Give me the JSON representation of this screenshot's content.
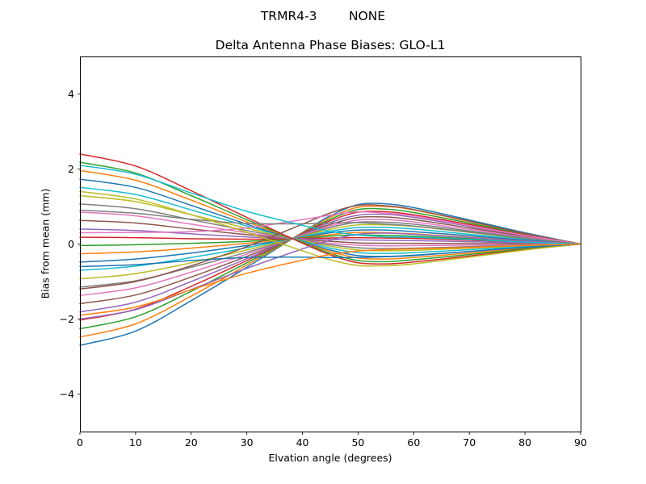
{
  "figure": {
    "background": "#ffffff"
  },
  "chart_data": {
    "type": "line",
    "suptitle": "TRMR4-3        NONE",
    "title": "Delta Antenna Phase Biases: GLO-L1",
    "xlabel": "Elvation angle (degrees)",
    "ylabel": "Bias from mean (mm)",
    "xlim": [
      0,
      90
    ],
    "ylim": [
      -5,
      5
    ],
    "xticks": [
      0,
      10,
      20,
      30,
      40,
      50,
      60,
      70,
      80,
      90
    ],
    "yticks": [
      -4,
      -2,
      0,
      2,
      4
    ],
    "grid": false,
    "legend": "none",
    "palette": [
      "#1f77b4",
      "#ff7f0e",
      "#2ca02c",
      "#d62728",
      "#9467bd",
      "#8c564b",
      "#e377c2",
      "#7f7f7f",
      "#bcbd22",
      "#17becf"
    ],
    "x": [
      0,
      10,
      20,
      30,
      40,
      45,
      50,
      55,
      60,
      70,
      80,
      90
    ],
    "series": [
      {
        "values": [
          -2.7,
          -2.32,
          -1.51,
          -0.62,
          0.31,
          0.75,
          1.05,
          1.07,
          0.97,
          0.64,
          0.3,
          0.0
        ]
      },
      {
        "values": [
          -2.48,
          -2.13,
          -1.39,
          -0.56,
          0.3,
          0.71,
          0.98,
          1.0,
          0.91,
          0.6,
          0.28,
          0.0
        ]
      },
      {
        "values": [
          -2.26,
          -1.94,
          -1.26,
          -0.5,
          0.29,
          0.66,
          0.92,
          0.93,
          0.84,
          0.56,
          0.26,
          0.0
        ]
      },
      {
        "values": [
          -2.03,
          -1.74,
          -1.13,
          -0.44,
          0.28,
          0.62,
          0.85,
          0.86,
          0.78,
          0.52,
          0.24,
          0.0
        ]
      },
      {
        "values": [
          -1.81,
          -1.55,
          -1.0,
          -0.39,
          0.26,
          0.57,
          0.77,
          0.79,
          0.71,
          0.47,
          0.22,
          0.0
        ]
      },
      {
        "values": [
          -1.59,
          -1.36,
          -0.88,
          -0.33,
          0.25,
          0.52,
          0.71,
          0.72,
          0.65,
          0.43,
          0.2,
          0.0
        ]
      },
      {
        "values": [
          -1.37,
          -1.17,
          -0.75,
          -0.27,
          0.24,
          0.48,
          0.64,
          0.65,
          0.59,
          0.39,
          0.18,
          0.0
        ]
      },
      {
        "values": [
          -1.15,
          -0.98,
          -0.62,
          -0.22,
          0.22,
          0.44,
          0.58,
          0.58,
          0.53,
          0.35,
          0.16,
          0.0
        ]
      },
      {
        "values": [
          -0.93,
          -0.79,
          -0.5,
          -0.16,
          0.21,
          0.39,
          0.51,
          0.51,
          0.47,
          0.31,
          0.14,
          0.0
        ]
      },
      {
        "values": [
          -0.7,
          -0.59,
          -0.36,
          -0.1,
          0.2,
          0.34,
          0.44,
          0.44,
          0.4,
          0.26,
          0.12,
          0.0
        ]
      },
      {
        "values": [
          -0.48,
          -0.4,
          -0.24,
          -0.04,
          0.18,
          0.3,
          0.37,
          0.37,
          0.33,
          0.22,
          0.1,
          0.0
        ]
      },
      {
        "values": [
          -0.26,
          -0.21,
          -0.11,
          0.02,
          0.17,
          0.25,
          0.31,
          0.3,
          0.27,
          0.18,
          0.08,
          0.0
        ]
      },
      {
        "values": [
          -0.04,
          -0.02,
          0.02,
          0.07,
          0.16,
          0.21,
          0.24,
          0.23,
          0.21,
          0.14,
          0.06,
          0.0
        ]
      },
      {
        "values": [
          0.18,
          0.17,
          0.14,
          0.13,
          0.15,
          0.16,
          0.17,
          0.16,
          0.15,
          0.1,
          0.05,
          0.0
        ]
      },
      {
        "values": [
          0.4,
          0.36,
          0.27,
          0.19,
          0.14,
          0.12,
          0.11,
          0.1,
          0.09,
          0.06,
          0.03,
          0.0
        ]
      },
      {
        "values": [
          0.63,
          0.56,
          0.4,
          0.25,
          0.12,
          0.07,
          0.03,
          0.02,
          0.02,
          0.01,
          0.01,
          0.0
        ]
      },
      {
        "values": [
          0.85,
          0.75,
          0.53,
          0.3,
          0.11,
          0.02,
          -0.03,
          -0.05,
          -0.04,
          -0.03,
          -0.01,
          0.0
        ]
      },
      {
        "values": [
          1.07,
          0.94,
          0.65,
          0.36,
          0.1,
          -0.02,
          -0.1,
          -0.12,
          -0.11,
          -0.07,
          -0.03,
          0.0
        ]
      },
      {
        "values": [
          1.29,
          1.13,
          0.78,
          0.42,
          0.09,
          -0.06,
          -0.16,
          -0.18,
          -0.17,
          -0.11,
          -0.05,
          0.0
        ]
      },
      {
        "values": [
          1.51,
          1.32,
          0.91,
          0.48,
          0.08,
          -0.11,
          -0.23,
          -0.25,
          -0.23,
          -0.15,
          -0.07,
          0.0
        ]
      },
      {
        "values": [
          1.73,
          1.51,
          1.03,
          0.53,
          0.06,
          -0.16,
          -0.31,
          -0.33,
          -0.3,
          -0.2,
          -0.09,
          0.0
        ]
      },
      {
        "values": [
          1.96,
          1.7,
          1.17,
          0.59,
          0.05,
          -0.2,
          -0.37,
          -0.4,
          -0.36,
          -0.24,
          -0.11,
          0.0
        ]
      },
      {
        "values": [
          2.18,
          1.89,
          1.29,
          0.65,
          0.04,
          -0.25,
          -0.44,
          -0.47,
          -0.42,
          -0.28,
          -0.13,
          0.0
        ]
      },
      {
        "values": [
          2.4,
          2.08,
          1.42,
          0.71,
          0.02,
          -0.29,
          -0.5,
          -0.53,
          -0.48,
          -0.32,
          -0.15,
          0.0
        ]
      },
      {
        "values": [
          -2.0,
          -1.75,
          -1.21,
          -0.65,
          -0.13,
          0.1,
          0.26,
          0.29,
          0.26,
          0.17,
          0.08,
          0.0
        ]
      },
      {
        "values": [
          -1.2,
          -1.0,
          -0.58,
          -0.07,
          0.53,
          0.83,
          1.03,
          1.02,
          0.92,
          0.61,
          0.28,
          0.0
        ]
      },
      {
        "values": [
          0.3,
          0.31,
          0.33,
          0.43,
          0.65,
          0.77,
          0.86,
          0.82,
          0.75,
          0.49,
          0.23,
          0.0
        ]
      },
      {
        "values": [
          0.9,
          0.82,
          0.66,
          0.55,
          0.54,
          0.56,
          0.57,
          0.53,
          0.48,
          0.32,
          0.15,
          0.0
        ]
      },
      {
        "values": [
          1.4,
          1.2,
          0.78,
          0.31,
          -0.18,
          -0.42,
          -0.57,
          -0.58,
          -0.53,
          -0.35,
          -0.16,
          0.0
        ]
      },
      {
        "values": [
          2.1,
          1.86,
          1.36,
          0.87,
          0.5,
          0.34,
          0.24,
          0.19,
          0.18,
          0.12,
          0.05,
          0.0
        ]
      },
      {
        "values": [
          -0.6,
          -0.55,
          -0.44,
          -0.36,
          -0.35,
          -0.36,
          -0.36,
          -0.34,
          -0.31,
          -0.2,
          -0.09,
          0.0
        ]
      },
      {
        "values": [
          -1.9,
          -1.68,
          -1.22,
          -0.78,
          -0.43,
          -0.28,
          -0.19,
          -0.15,
          -0.13,
          -0.09,
          -0.04,
          0.0
        ]
      }
    ]
  }
}
